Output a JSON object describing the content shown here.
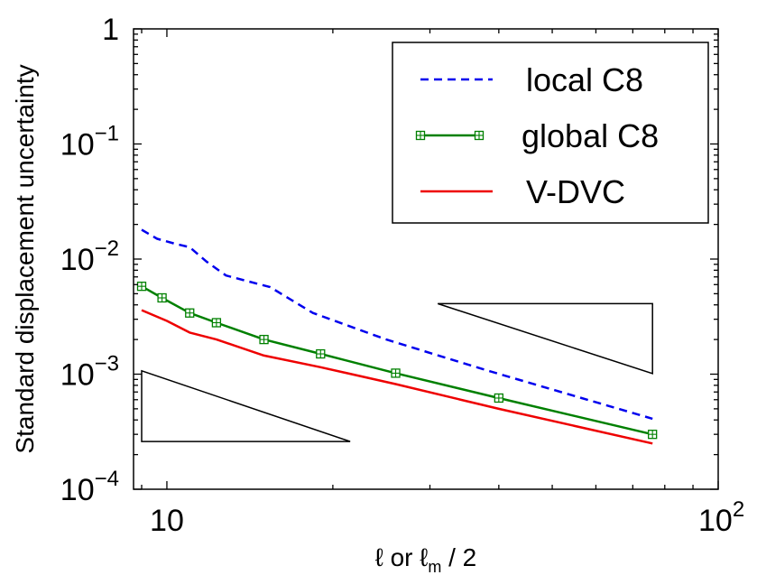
{
  "chart_data": {
    "type": "line",
    "xscale": "log",
    "yscale": "log",
    "xlim": [
      8.7,
      100
    ],
    "ylim": [
      0.0001,
      1
    ],
    "xlabel": "ℓ or ℓm / 2",
    "ylabel": "Standard displacement uncertainty",
    "xticks": [
      {
        "value": 10,
        "base": "10",
        "exp": ""
      },
      {
        "value": 100,
        "base": "10",
        "exp": "2"
      }
    ],
    "yticks": [
      {
        "value": 1,
        "base": "1",
        "exp": ""
      },
      {
        "value": 0.1,
        "base": "10",
        "exp": "−1"
      },
      {
        "value": 0.01,
        "base": "10",
        "exp": "−2"
      },
      {
        "value": 0.001,
        "base": "10",
        "exp": "−3"
      },
      {
        "value": 0.0001,
        "base": "10",
        "exp": "−4"
      }
    ],
    "grid": false,
    "legend_position": "top-right",
    "series": [
      {
        "name": "local C8",
        "color": "#0000ee",
        "style": "dashed",
        "marker": "none",
        "x": [
          9,
          9.6,
          10.4,
          11,
          11.8,
          12.8,
          15.4,
          18.4,
          25,
          38,
          76
        ],
        "y": [
          0.018,
          0.015,
          0.0135,
          0.0127,
          0.0095,
          0.0072,
          0.0057,
          0.0034,
          0.002,
          0.00108,
          0.00041
        ]
      },
      {
        "name": "global C8",
        "color": "#008000",
        "style": "solid",
        "marker": "square-plus",
        "x": [
          9,
          9.8,
          11,
          12.3,
          15,
          19,
          26,
          40,
          76
        ],
        "y": [
          0.0058,
          0.0046,
          0.0034,
          0.0028,
          0.002,
          0.0015,
          0.00102,
          0.00062,
          0.0003
        ]
      },
      {
        "name": "V-DVC",
        "color": "#ee0000",
        "style": "solid",
        "marker": "none",
        "x": [
          9,
          10,
          11,
          12.3,
          15,
          19,
          26,
          40,
          76
        ],
        "y": [
          0.0036,
          0.0029,
          0.0023,
          0.002,
          0.00145,
          0.00115,
          0.00082,
          0.0005,
          0.00025
        ]
      }
    ],
    "triangles": [
      {
        "x": [
          9,
          9,
          21.5
        ],
        "y": [
          0.00107,
          0.00026,
          0.00026
        ]
      },
      {
        "x": [
          31,
          76,
          76
        ],
        "y": [
          0.0041,
          0.0041,
          0.00101
        ]
      }
    ]
  }
}
